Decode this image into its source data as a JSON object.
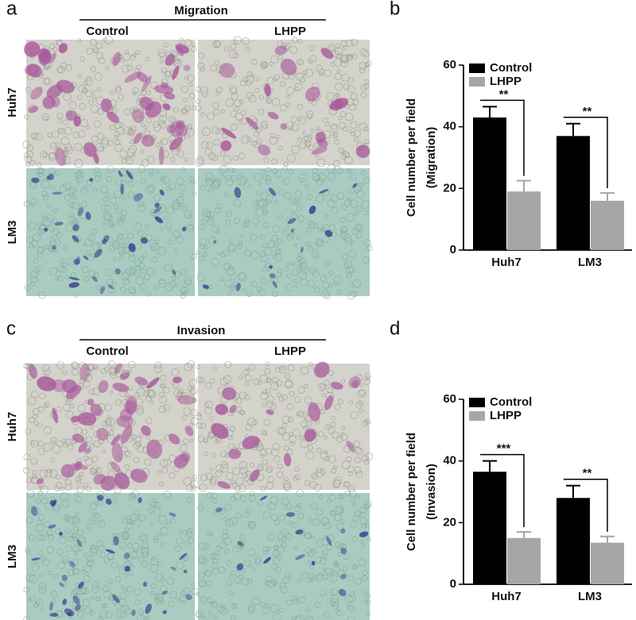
{
  "panel_labels": [
    "a",
    "b",
    "c",
    "d"
  ],
  "micrographs": [
    {
      "title": "Migration",
      "columns": [
        "Control",
        "LHPP"
      ],
      "rows": [
        "Huh7",
        "LM3"
      ]
    },
    {
      "title": "Invasion",
      "columns": [
        "Control",
        "LHPP"
      ],
      "rows": [
        "Huh7",
        "LM3"
      ]
    }
  ],
  "chart_data": [
    {
      "type": "bar",
      "ylabel": [
        "Cell number per field",
        "(Migration)"
      ],
      "categories": [
        "Huh7",
        "LM3"
      ],
      "series": [
        {
          "name": "Control",
          "color": "#000000",
          "values": [
            43,
            37
          ],
          "errors": [
            3.5,
            4
          ]
        },
        {
          "name": "LHPP",
          "color": "#a6a6a6",
          "values": [
            19,
            16
          ],
          "errors": [
            3.5,
            2.5
          ]
        }
      ],
      "annotations": [
        "**",
        "**"
      ],
      "ylim": [
        0,
        60
      ],
      "yticks": [
        0,
        20,
        40,
        60
      ]
    },
    {
      "type": "bar",
      "ylabel": [
        "Cell number per field",
        "(Invasion)"
      ],
      "categories": [
        "Huh7",
        "LM3"
      ],
      "series": [
        {
          "name": "Control",
          "color": "#000000",
          "values": [
            36.5,
            28
          ],
          "errors": [
            3.5,
            4
          ]
        },
        {
          "name": "LHPP",
          "color": "#a6a6a6",
          "values": [
            15,
            13.5
          ],
          "errors": [
            2,
            2
          ]
        }
      ],
      "annotations": [
        "***",
        "**"
      ],
      "ylim": [
        0,
        60
      ],
      "yticks": [
        0,
        20,
        40,
        60
      ]
    }
  ]
}
